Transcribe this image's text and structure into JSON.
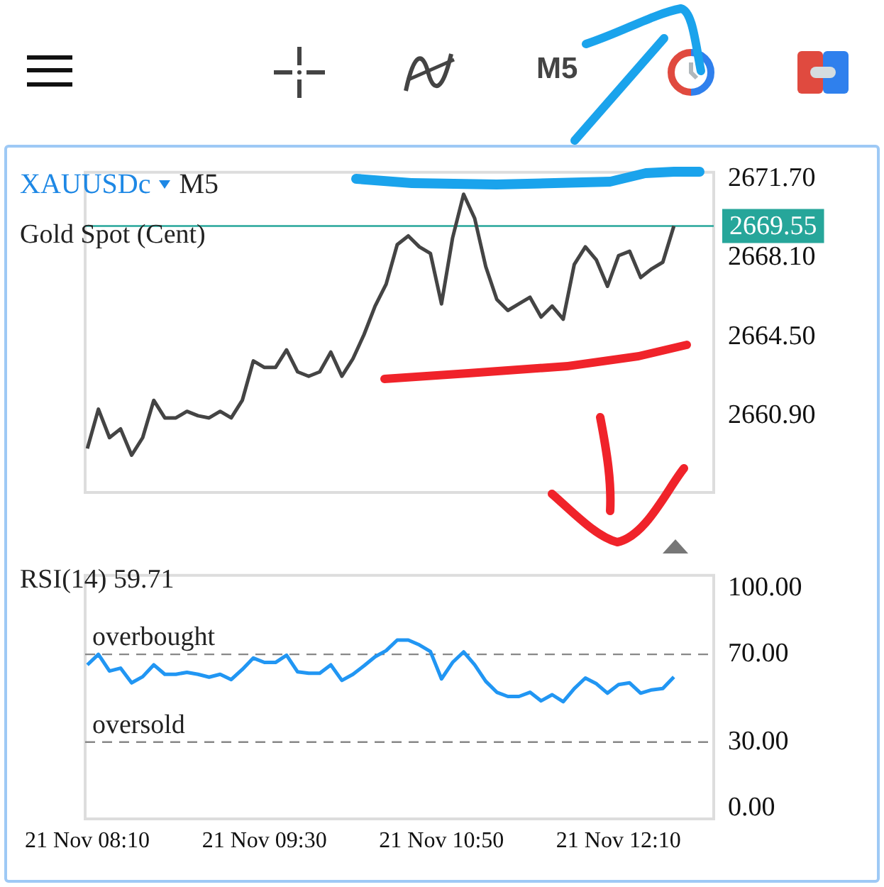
{
  "chart_data": [
    {
      "type": "line",
      "title": "XAUUSDc",
      "subtitle": "Gold Spot (Cent)",
      "annotations": [
        "M5",
        "M5"
      ],
      "marker": "none",
      "tick_labels": "y",
      "x": [
        "--11-21T08:10",
        "--11-21T08:15",
        "--11-21T08:20",
        "--11-21T08:25",
        "--11-21T08:30",
        "--11-21T08:35",
        "--11-21T08:40",
        "--11-21T08:45",
        "--11-21T08:50",
        "--11-21T08:55",
        "--11-21T09:00",
        "--11-21T09:05",
        "--11-21T09:10",
        "--11-21T09:15",
        "--11-21T09:20",
        "--11-21T09:25",
        "--11-21T09:30",
        "--11-21T09:35",
        "--11-21T09:40",
        "--11-21T09:45",
        "--11-21T09:50",
        "--11-21T09:55",
        "--11-21T10:00",
        "--11-21T10:05",
        "--11-21T10:10",
        "--11-21T10:15",
        "--11-21T10:20",
        "--11-21T10:25",
        "--11-21T10:30",
        "--11-21T10:35",
        "--11-21T10:40",
        "--11-21T10:45",
        "--11-21T10:50",
        "--11-21T10:55",
        "--11-21T11:00",
        "--11-21T11:05",
        "--11-21T11:10",
        "--11-21T11:15",
        "--11-21T11:20",
        "--11-21T11:25",
        "--11-21T11:30",
        "--11-21T11:35",
        "--11-21T11:40",
        "--11-21T11:45",
        "--11-21T11:50",
        "--11-21T11:55",
        "--11-21T12:00",
        "--11-21T12:05",
        "--11-21T12:10",
        "--11-21T12:15",
        "--11-21T12:20",
        "--11-21T12:25",
        "--11-21T12:30",
        "--11-21T12:35"
      ],
      "series": [
        {
          "color": "#444444",
          "values": [
            2659.4,
            2661.2,
            2659.9,
            2660.3,
            2659.1,
            2659.9,
            2661.6,
            2660.8,
            2660.8,
            2661.1,
            2660.9,
            2660.8,
            2661.1,
            2660.8,
            2661.6,
            2663.4,
            2663.1,
            2663.1,
            2663.9,
            2662.9,
            2662.7,
            2662.9,
            2663.8,
            2662.7,
            2663.5,
            2664.6,
            2665.9,
            2666.9,
            2668.7,
            2669.1,
            2668.6,
            2668.3,
            2666.0,
            2669.0,
            2671.0,
            2669.9,
            2667.7,
            2666.2,
            2665.7,
            2666.0,
            2666.3,
            2665.4,
            2665.9,
            2665.3,
            2667.8,
            2668.6,
            2668.0,
            2666.8,
            2668.2,
            2668.4,
            2667.2,
            2667.6,
            2667.9,
            2669.55
          ]
        }
      ],
      "xlim": [
        "--11-21T08:09",
        "--11-21T12:53"
      ],
      "ylim": [
        2657.4,
        2672.0
      ],
      "yticks": [
        {
          "value": 2660.9,
          "label": "2660.90"
        },
        {
          "value": 2664.5,
          "label": "2664.50"
        },
        {
          "value": 2668.1,
          "label": "2668.10"
        },
        {
          "value": 2671.7,
          "label": "2671.70"
        }
      ],
      "ref_lines": [
        {
          "axis": "y",
          "value": 2669.55,
          "label": "2669.55",
          "color": "#26a69a"
        }
      ]
    },
    {
      "type": "line",
      "title": "RSI(14) 59.71",
      "marker": "none",
      "x": [
        "--11-21T08:10",
        "--11-21T08:15",
        "--11-21T08:20",
        "--11-21T08:25",
        "--11-21T08:30",
        "--11-21T08:35",
        "--11-21T08:40",
        "--11-21T08:45",
        "--11-21T08:50",
        "--11-21T08:55",
        "--11-21T09:00",
        "--11-21T09:05",
        "--11-21T09:10",
        "--11-21T09:15",
        "--11-21T09:20",
        "--11-21T09:25",
        "--11-21T09:30",
        "--11-21T09:35",
        "--11-21T09:40",
        "--11-21T09:45",
        "--11-21T09:50",
        "--11-21T09:55",
        "--11-21T10:00",
        "--11-21T10:05",
        "--11-21T10:10",
        "--11-21T10:15",
        "--11-21T10:20",
        "--11-21T10:25",
        "--11-21T10:30",
        "--11-21T10:35",
        "--11-21T10:40",
        "--11-21T10:45",
        "--11-21T10:50",
        "--11-21T10:55",
        "--11-21T11:00",
        "--11-21T11:05",
        "--11-21T11:10",
        "--11-21T11:15",
        "--11-21T11:20",
        "--11-21T11:25",
        "--11-21T11:30",
        "--11-21T11:35",
        "--11-21T11:40",
        "--11-21T11:45",
        "--11-21T11:50",
        "--11-21T11:55",
        "--11-21T12:00",
        "--11-21T12:05",
        "--11-21T12:10",
        "--11-21T12:15",
        "--11-21T12:20",
        "--11-21T12:25",
        "--11-21T12:30",
        "--11-21T12:35"
      ],
      "series": [
        {
          "color": "#2196f3",
          "values": [
            65.2,
            70,
            62.4,
            63.7,
            57.0,
            59.8,
            65.2,
            60.9,
            60.9,
            61.8,
            60.9,
            59.6,
            60.9,
            58.5,
            63.1,
            68.3,
            66.3,
            66.3,
            69.6,
            62.0,
            61.4,
            61.4,
            65.2,
            58.1,
            60.9,
            64.8,
            68.9,
            71.7,
            76.5,
            76.5,
            74.3,
            71.3,
            58.8,
            66.3,
            71.1,
            65.2,
            57.7,
            52.7,
            50.8,
            50.8,
            52.7,
            48.8,
            51.6,
            48.4,
            54.4,
            59.2,
            56.6,
            52.3,
            56.2,
            57.0,
            52.3,
            53.8,
            54.4,
            59.7
          ]
        }
      ],
      "xlim": [
        "--11-21T08:09",
        "--11-21T12:53"
      ],
      "xticks": [
        {
          "value": "--11-21T08:10",
          "label": "21 Nov 08:10"
        },
        {
          "value": "--11-21T09:30",
          "label": "21 Nov 09:30"
        },
        {
          "value": "--11-21T10:50",
          "label": "21 Nov 10:50"
        },
        {
          "value": "--11-21T12:10",
          "label": "21 Nov 12:10"
        }
      ],
      "ylim": [
        -5,
        106
      ],
      "yticks": [
        {
          "value": 0,
          "label": "0.00"
        },
        {
          "value": 30,
          "label": "30.00"
        },
        {
          "value": 70,
          "label": "70.00"
        },
        {
          "value": 100,
          "label": "100.00"
        }
      ],
      "ref_lines": [
        {
          "axis": "y",
          "value": 70,
          "label": "overbought",
          "color": "#888888",
          "line_style": "dashed"
        },
        {
          "axis": "y",
          "value": 30,
          "label": "oversold",
          "color": "#888888",
          "line_style": "dashed"
        }
      ]
    }
  ]
}
